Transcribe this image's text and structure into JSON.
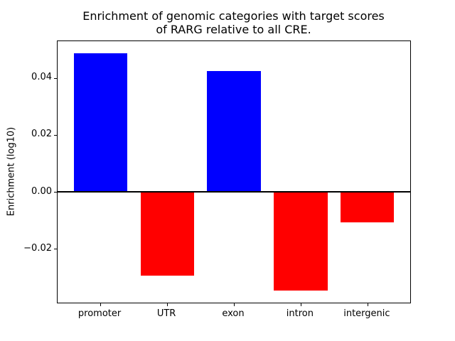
{
  "chart_data": {
    "type": "bar",
    "title": "Enrichment of genomic categories with target scores\nof RARG relative to all CRE.",
    "ylabel": "Enrichment (log10)",
    "xlabel": "",
    "categories": [
      "promoter",
      "UTR",
      "exon",
      "intron",
      "intergenic"
    ],
    "values": [
      0.0487,
      -0.0294,
      0.0424,
      -0.0347,
      -0.0108
    ],
    "bar_colors": [
      "#0000ff",
      "#ff0000",
      "#0000ff",
      "#ff0000",
      "#ff0000"
    ],
    "positive_color": "#0000ff",
    "negative_color": "#ff0000",
    "ylim": [
      -0.0389,
      0.0529
    ],
    "xlim": [
      -0.64,
      4.64
    ],
    "bar_width_units": 0.8,
    "yticks": [
      0.04,
      0.02,
      0.0,
      -0.02
    ],
    "ytick_labels": [
      "0.04",
      "0.02",
      "0.00",
      "−0.02"
    ],
    "grid": false,
    "zero_line": true,
    "legend": null
  }
}
